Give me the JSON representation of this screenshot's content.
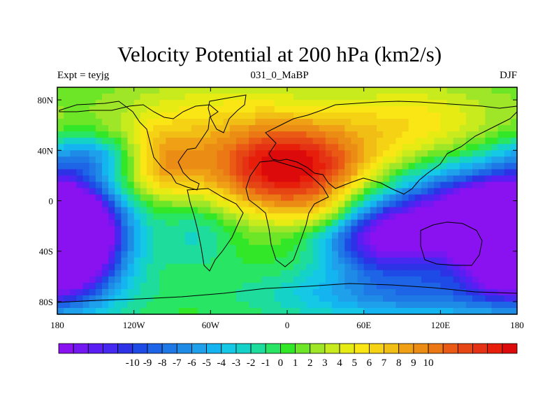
{
  "chart_data": {
    "type": "heatmap",
    "title": "Velocity Potential at 200 hPa (km2/s)",
    "left_label": "Expt = teyjg",
    "center_label": "031_0_MaBP",
    "right_label": "DJF",
    "x_ticks": [
      "180",
      "120W",
      "60W",
      "0",
      "60E",
      "120E",
      "180"
    ],
    "x_tick_values": [
      -180,
      -120,
      -60,
      0,
      60,
      120,
      180
    ],
    "y_ticks": [
      "80N",
      "40N",
      "0",
      "40S",
      "80S"
    ],
    "y_tick_values": [
      80,
      40,
      0,
      -40,
      -80
    ],
    "xlim": [
      -180,
      180
    ],
    "ylim": [
      -90,
      90
    ],
    "colorbar_labels": [
      "-10",
      "-9",
      "-8",
      "-7",
      "-6",
      "-5",
      "-4",
      "-3",
      "-2",
      "-1",
      "0",
      "1",
      "2",
      "3",
      "4",
      "5",
      "6",
      "7",
      "8",
      "9",
      "10"
    ],
    "colorbar_levels": [
      -10,
      -9,
      -8,
      -7,
      -6,
      -5,
      -4,
      -3,
      -2,
      -1,
      0,
      1,
      2,
      3,
      4,
      5,
      6,
      7,
      8,
      9,
      10
    ],
    "colorbar_colors": [
      "#8a12f0",
      "#7318f0",
      "#5a1ef5",
      "#4628f0",
      "#2d32e6",
      "#1e4be6",
      "#1e64e6",
      "#1e78e6",
      "#1e8ce6",
      "#1ea0eb",
      "#14b4f0",
      "#14c8e6",
      "#14d2c8",
      "#1edc9b",
      "#28e664",
      "#32e628",
      "#6ee628",
      "#a0e628",
      "#c8eb1e",
      "#e6eb14",
      "#fae614",
      "#f5d214",
      "#f0be14",
      "#f0a014",
      "#eb8c14",
      "#eb7814",
      "#eb5a14",
      "#e64614",
      "#e63214",
      "#e61e0a",
      "#dc0a0a"
    ],
    "field_centers": [
      {
        "lon": 0,
        "lat": 25,
        "value": 10.5,
        "sx": 45,
        "sy": 25
      },
      {
        "lon": 100,
        "lat": 60,
        "value": 3.5,
        "sx": 50,
        "sy": 25
      },
      {
        "lon": -100,
        "lat": 30,
        "value": 5.0,
        "sx": 25,
        "sy": 20
      },
      {
        "lon": -60,
        "lat": 70,
        "value": 2.5,
        "sx": 60,
        "sy": 25
      },
      {
        "lon": 140,
        "lat": -15,
        "value": -11.5,
        "sx": 45,
        "sy": 28
      },
      {
        "lon": 70,
        "lat": -30,
        "value": -8.0,
        "sx": 30,
        "sy": 20
      },
      {
        "lon": -170,
        "lat": -30,
        "value": -11.0,
        "sx": 30,
        "sy": 28
      },
      {
        "lon": 180,
        "lat": -30,
        "value": -9.0,
        "sx": 25,
        "sy": 28
      },
      {
        "lon": 100,
        "lat": -75,
        "value": -4.5,
        "sx": 80,
        "sy": 15
      },
      {
        "lon": -150,
        "lat": 35,
        "value": -4.0,
        "sx": 30,
        "sy": 12
      },
      {
        "lon": -70,
        "lat": -25,
        "value": -2.0,
        "sx": 20,
        "sy": 20
      },
      {
        "lon": 30,
        "lat": -10,
        "value": 2.0,
        "sx": 20,
        "sy": 10
      }
    ]
  }
}
